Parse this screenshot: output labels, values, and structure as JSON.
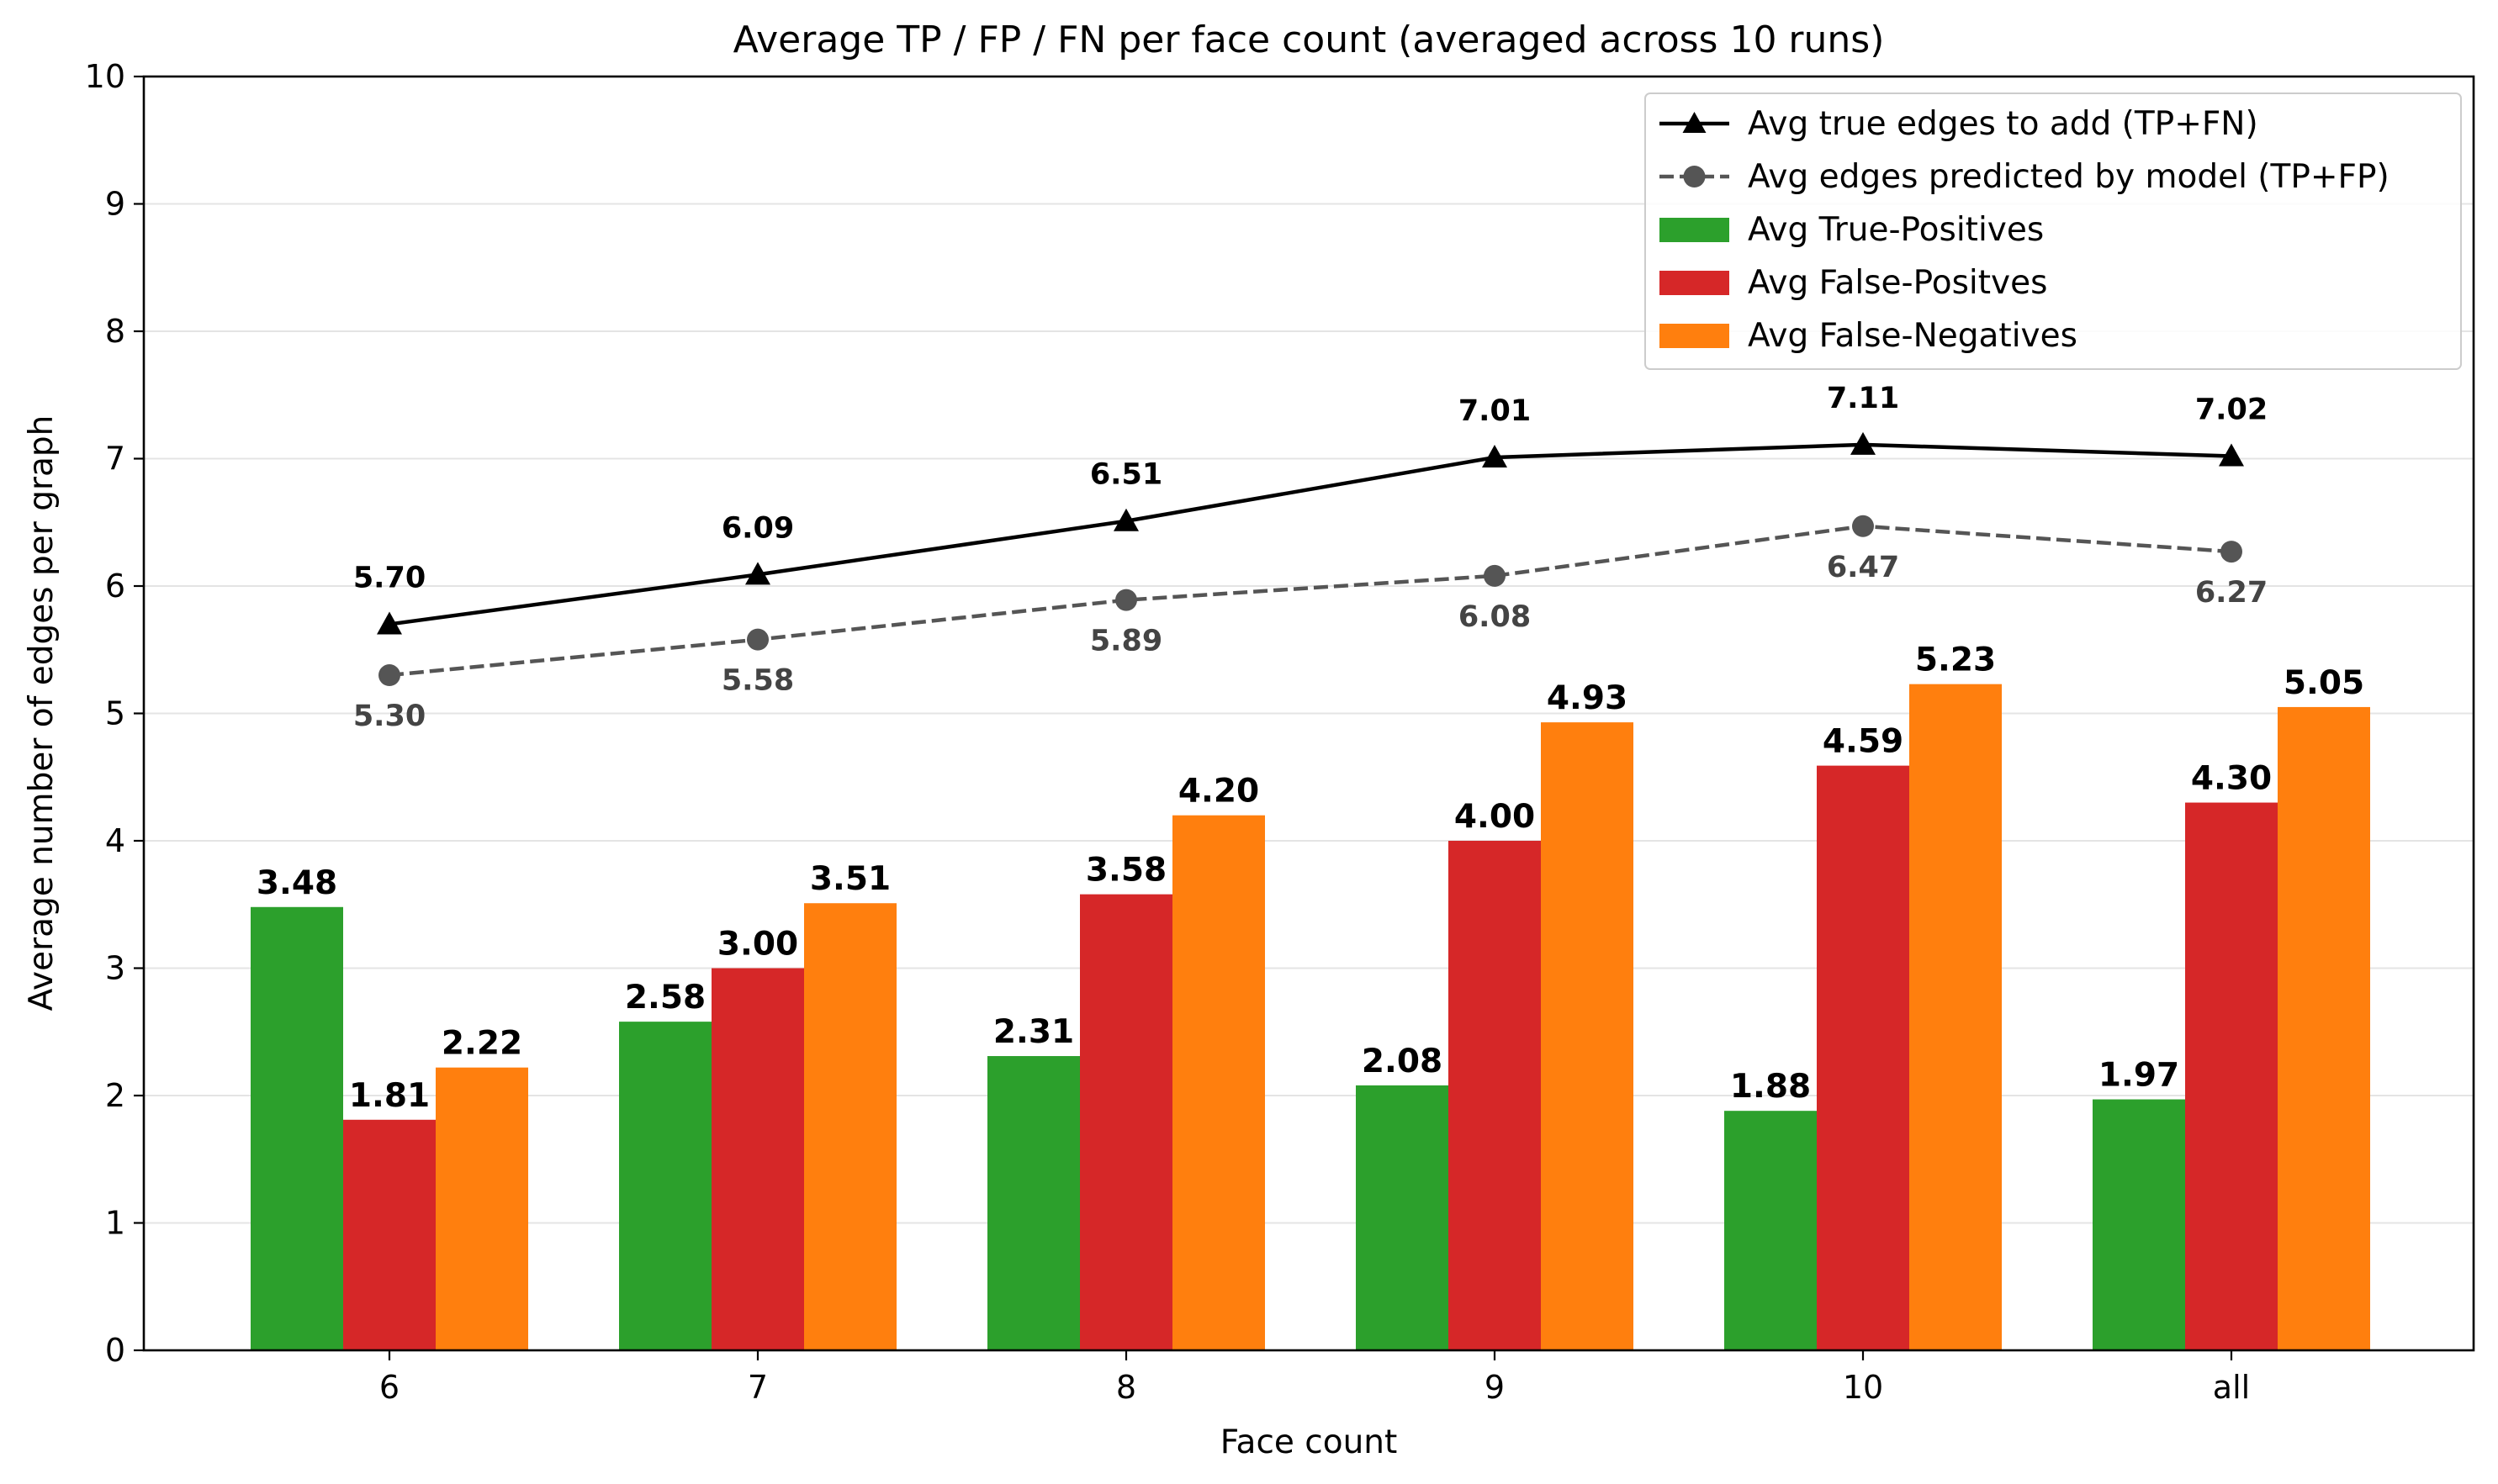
{
  "chart_data": {
    "type": "bar",
    "title": "Average TP / FP / FN per face count (averaged across 10 runs)",
    "xlabel": "Face count",
    "ylabel": "Average number of edges per graph",
    "categories": [
      "6",
      "7",
      "8",
      "9",
      "10",
      "all"
    ],
    "ylim": [
      0,
      10
    ],
    "yticks": [
      "0",
      "1",
      "2",
      "3",
      "4",
      "5",
      "6",
      "7",
      "8",
      "9",
      "10"
    ],
    "grid": "horizontal",
    "legend_position": "top-right",
    "bar_series": [
      {
        "name": "Avg True-Positives",
        "color": "#2ca02c",
        "values": [
          3.48,
          2.58,
          2.31,
          2.08,
          1.88,
          1.97
        ],
        "labels": [
          "3.48",
          "2.58",
          "2.31",
          "2.08",
          "1.88",
          "1.97"
        ]
      },
      {
        "name": "Avg False-Positves",
        "color": "#d62728",
        "values": [
          1.81,
          3.0,
          3.58,
          4.0,
          4.59,
          4.3
        ],
        "labels": [
          "1.81",
          "3.00",
          "3.58",
          "4.00",
          "4.59",
          "4.30"
        ]
      },
      {
        "name": "Avg False-Negatives",
        "color": "#ff7f0e",
        "values": [
          2.22,
          3.51,
          4.2,
          4.93,
          5.23,
          5.05
        ],
        "labels": [
          "2.22",
          "3.51",
          "4.20",
          "4.93",
          "5.23",
          "5.05"
        ]
      }
    ],
    "line_series": [
      {
        "name": "Avg true edges to add (TP+FN)",
        "color": "#000000",
        "marker": "triangle",
        "style": "solid",
        "label_position": "above",
        "values": [
          5.7,
          6.09,
          6.51,
          7.01,
          7.11,
          7.02
        ],
        "labels": [
          "5.70",
          "6.09",
          "6.51",
          "7.01",
          "7.11",
          "7.02"
        ]
      },
      {
        "name": "Avg edges predicted by model (TP+FP)",
        "color": "#555555",
        "marker": "circle",
        "style": "dashed",
        "label_position": "below",
        "values": [
          5.3,
          5.58,
          5.89,
          6.08,
          6.47,
          6.27
        ],
        "labels": [
          "5.30",
          "5.58",
          "5.89",
          "6.08",
          "6.47",
          "6.27"
        ]
      }
    ],
    "legend_order": [
      "Avg true edges to add (TP+FN)",
      "Avg edges predicted by model (TP+FP)",
      "Avg True-Positives",
      "Avg False-Positves",
      "Avg False-Negatives"
    ]
  }
}
